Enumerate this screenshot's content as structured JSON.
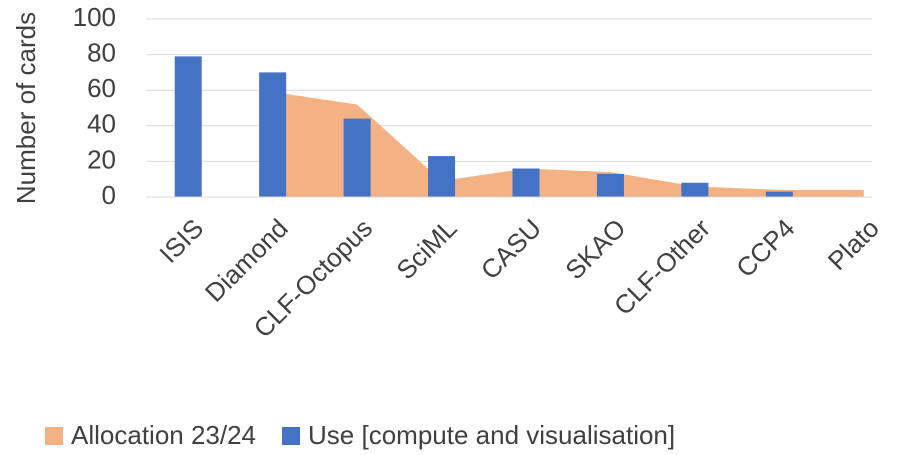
{
  "chart_data": {
    "type": "bar-area",
    "y_label": "Number of cards",
    "categories": [
      "ISIS",
      "Diamond",
      "CLF-Octopus",
      "SciML",
      "CASU",
      "SKAO",
      "CLF-Other",
      "CCP4",
      "Plato"
    ],
    "series": [
      {
        "name": "Allocation 23/24",
        "color": "#f4b183",
        "kind": "area",
        "values": [
          null,
          59,
          52,
          9,
          16,
          14,
          6,
          4,
          4
        ]
      },
      {
        "name": "Use [compute and visualisation]",
        "color": "#4472c4",
        "kind": "bar",
        "values": [
          79,
          70,
          44,
          23,
          16,
          13,
          8,
          3,
          0
        ]
      }
    ],
    "ylim": [
      0,
      100
    ],
    "yticks": [
      0,
      20,
      40,
      60,
      80,
      100
    ],
    "grid": true
  }
}
